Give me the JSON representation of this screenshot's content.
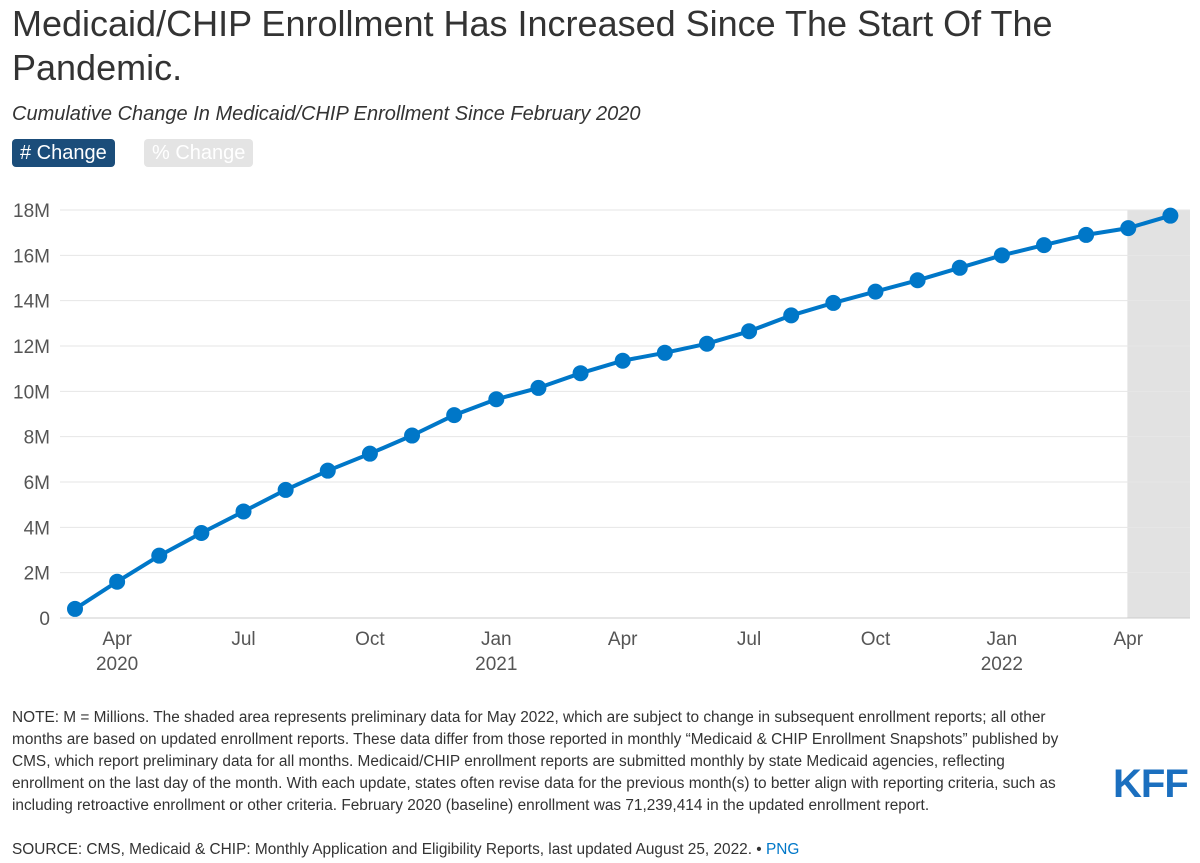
{
  "header": {
    "title": "Medicaid/CHIP Enrollment Has Increased Since The Start Of The Pandemic.",
    "subtitle": "Cumulative Change In Medicaid/CHIP Enrollment Since February 2020",
    "toggle_count_label": "# Change",
    "toggle_percent_label": "% Change"
  },
  "chart_data": {
    "type": "line",
    "title": "Medicaid/CHIP Enrollment Has Increased Since The Start Of The Pandemic.",
    "subtitle": "Cumulative Change In Medicaid/CHIP Enrollment Since February 2020",
    "xlabel": "",
    "ylabel": "",
    "ylim": [
      0,
      18
    ],
    "y_unit": "millions",
    "y_ticks": [
      0,
      2,
      4,
      6,
      8,
      10,
      12,
      14,
      16,
      18
    ],
    "y_tick_labels": [
      "0",
      "2M",
      "4M",
      "6M",
      "8M",
      "10M",
      "12M",
      "14M",
      "16M",
      "18M"
    ],
    "grid": true,
    "shaded_region": {
      "from": "May 2022",
      "to": "May 2022",
      "meaning": "preliminary data"
    },
    "x_tick_labels": [
      {
        "month": "Apr",
        "year": "2020",
        "index": 1
      },
      {
        "month": "Jul",
        "year": "",
        "index": 4
      },
      {
        "month": "Oct",
        "year": "",
        "index": 7
      },
      {
        "month": "Jan",
        "year": "2021",
        "index": 10
      },
      {
        "month": "Apr",
        "year": "",
        "index": 13
      },
      {
        "month": "Jul",
        "year": "",
        "index": 16
      },
      {
        "month": "Oct",
        "year": "",
        "index": 19
      },
      {
        "month": "Jan",
        "year": "2022",
        "index": 22
      },
      {
        "month": "Apr",
        "year": "",
        "index": 25
      }
    ],
    "series": [
      {
        "name": "# Change",
        "color": "#0077c8",
        "x": [
          "Mar 2020",
          "Apr 2020",
          "May 2020",
          "Jun 2020",
          "Jul 2020",
          "Aug 2020",
          "Sep 2020",
          "Oct 2020",
          "Nov 2020",
          "Dec 2020",
          "Jan 2021",
          "Feb 2021",
          "Mar 2021",
          "Apr 2021",
          "May 2021",
          "Jun 2021",
          "Jul 2021",
          "Aug 2021",
          "Sep 2021",
          "Oct 2021",
          "Nov 2021",
          "Dec 2021",
          "Jan 2022",
          "Feb 2022",
          "Mar 2022",
          "Apr 2022",
          "May 2022"
        ],
        "values": [
          0.4,
          1.6,
          2.75,
          3.75,
          4.7,
          5.65,
          6.5,
          7.25,
          8.05,
          8.95,
          9.65,
          10.15,
          10.8,
          11.35,
          11.7,
          12.1,
          12.65,
          13.35,
          13.9,
          14.4,
          14.9,
          15.45,
          16.0,
          16.45,
          16.9,
          17.2,
          17.75
        ]
      }
    ]
  },
  "footer": {
    "note": "NOTE: M = Millions. The shaded area represents preliminary data for May 2022, which are subject to change in subsequent enrollment reports; all other months are based on updated enrollment reports. These data differ from those reported in monthly “Medicaid & CHIP Enrollment Snapshots” published by CMS, which report preliminary data for all months. Medicaid/CHIP enrollment reports are submitted monthly by state Medicaid agencies, reflecting enrollment on the last day of the month. With each update, states often revise data for the previous month(s) to better align with reporting criteria, such as including retroactive enrollment or other criteria. February 2020 (baseline) enrollment was 71,239,414 in the updated enrollment report.",
    "source": "SOURCE: CMS, Medicaid & CHIP: Monthly Application and Eligibility Reports, last updated August 25, 2022.",
    "separator": " • ",
    "png_link": "PNG",
    "logo_text": "KFF"
  },
  "colors": {
    "line": "#0077c8",
    "active_toggle": "#1b4d7a",
    "inactive_toggle": "#e4e4e4",
    "shade": "#e2e2e2",
    "grid": "#e6e6e6",
    "logo": "#1b6fbf"
  }
}
